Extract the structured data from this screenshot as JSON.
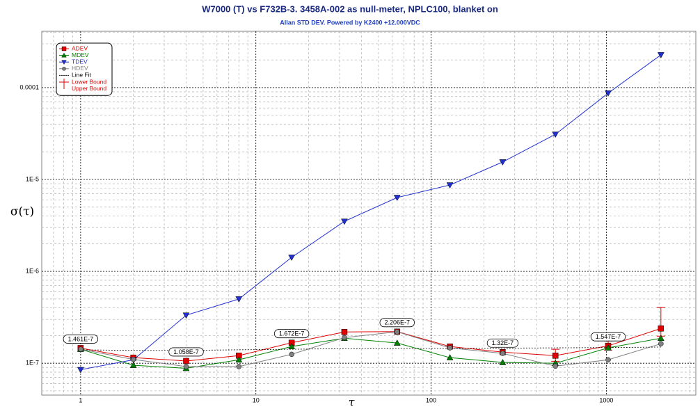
{
  "chart_data": {
    "type": "line",
    "title": "W7000 (T) vs F732B-3. 3458A-002 as null-meter, NPLC100, blanket on",
    "subtitle": "Allan STD DEV. Powered by K2400 +12.000VDC",
    "x_label": "τ",
    "y_label": "σ(τ)",
    "x_log": true,
    "y_log": true,
    "grid": true,
    "legend": "top-left",
    "x": [
      1,
      2,
      4,
      8,
      16,
      32,
      64,
      128,
      256,
      512,
      1024,
      2048
    ],
    "xlim": [
      0.6,
      3240
    ],
    "ylim": [
      4.5e-08,
      0.00041
    ],
    "xticks": [
      1,
      10,
      100,
      1000
    ],
    "yticks": [
      {
        "value": 1e-07,
        "label": "1E-7"
      },
      {
        "value": 1e-06,
        "label": "1E-6"
      },
      {
        "value": 1e-05,
        "label": "1E-5"
      },
      0.0001
    ],
    "xminorticks": [
      0.7,
      0.8,
      0.9,
      2,
      3,
      4,
      5,
      6,
      7,
      8,
      9,
      20,
      30,
      40,
      50,
      60,
      70,
      80,
      90,
      200,
      300,
      400,
      500,
      600,
      700,
      800,
      900,
      2000,
      3000
    ],
    "yminorticks": [
      5e-08,
      6e-08,
      7e-08,
      8e-08,
      9e-08,
      2e-07,
      3e-07,
      4e-07,
      5e-07,
      6e-07,
      7e-07,
      8e-07,
      9e-07,
      2e-06,
      3e-06,
      4e-06,
      5e-06,
      6e-06,
      7e-06,
      8e-06,
      9e-06,
      2e-05,
      3e-05,
      4e-05,
      5e-05,
      6e-05,
      7e-05,
      8e-05,
      9e-05,
      0.0002,
      0.0003,
      0.0004
    ],
    "series": [
      {
        "name": "ADEV",
        "color": "#e00000",
        "marker": "square",
        "values": [
          1.461e-07,
          1.15e-07,
          1.058e-07,
          1.21e-07,
          1.672e-07,
          2.19e-07,
          2.206e-07,
          1.52e-07,
          1.32e-07,
          1.21e-07,
          1.547e-07,
          2.39e-07
        ],
        "value_labels": [
          "1.461E-7",
          null,
          "1.058E-7",
          null,
          "1.672E-7",
          null,
          "2.206E-7",
          null,
          "1.32E-7",
          null,
          "1.547E-7",
          null
        ]
      },
      {
        "name": "MDEV",
        "color": "#008000",
        "marker": "triangle-up",
        "values": [
          1.42e-07,
          9.5e-08,
          8.8e-08,
          1.09e-07,
          1.52e-07,
          1.87e-07,
          1.66e-07,
          1.15e-07,
          1.02e-07,
          1e-07,
          1.47e-07,
          1.87e-07
        ]
      },
      {
        "name": "TDEV",
        "color": "#2030d0",
        "marker": "triangle-down",
        "values": [
          8.5e-08,
          1.09e-07,
          3.33e-07,
          5e-07,
          1.42e-06,
          3.5e-06,
          6.36e-06,
          8.7e-06,
          1.55e-05,
          3.1e-05,
          8.7e-05,
          0.000227
        ]
      },
      {
        "name": "HDEV",
        "color": "#808080",
        "marker": "circle",
        "values": [
          1.42e-07,
          1.1e-07,
          9.2e-08,
          9.2e-08,
          1.25e-07,
          1.9e-07,
          2.2e-07,
          1.47e-07,
          1.28e-07,
          9.3e-08,
          1.09e-07,
          1.63e-07
        ]
      },
      {
        "name": "Line Fit",
        "color": "#000000",
        "marker": "none",
        "values": [
          1.4e-07,
          1.38e-07,
          1.38e-07,
          1.4e-07,
          1.42e-07,
          1.44e-07,
          1.45e-07,
          1.45e-07,
          1.46e-07,
          1.47e-07,
          1.48e-07,
          1.5e-07
        ]
      }
    ],
    "error_bounds": {
      "color": "#e00000",
      "lower_name": "Lower Bound",
      "upper_name": "Upper Bound",
      "lower": [
        null,
        null,
        null,
        null,
        null,
        null,
        null,
        null,
        null,
        1.05e-07,
        1.39e-07,
        1.97e-07
      ],
      "upper": [
        null,
        null,
        null,
        null,
        null,
        null,
        null,
        null,
        null,
        1.42e-07,
        1.75e-07,
        4.04e-07
      ]
    }
  }
}
